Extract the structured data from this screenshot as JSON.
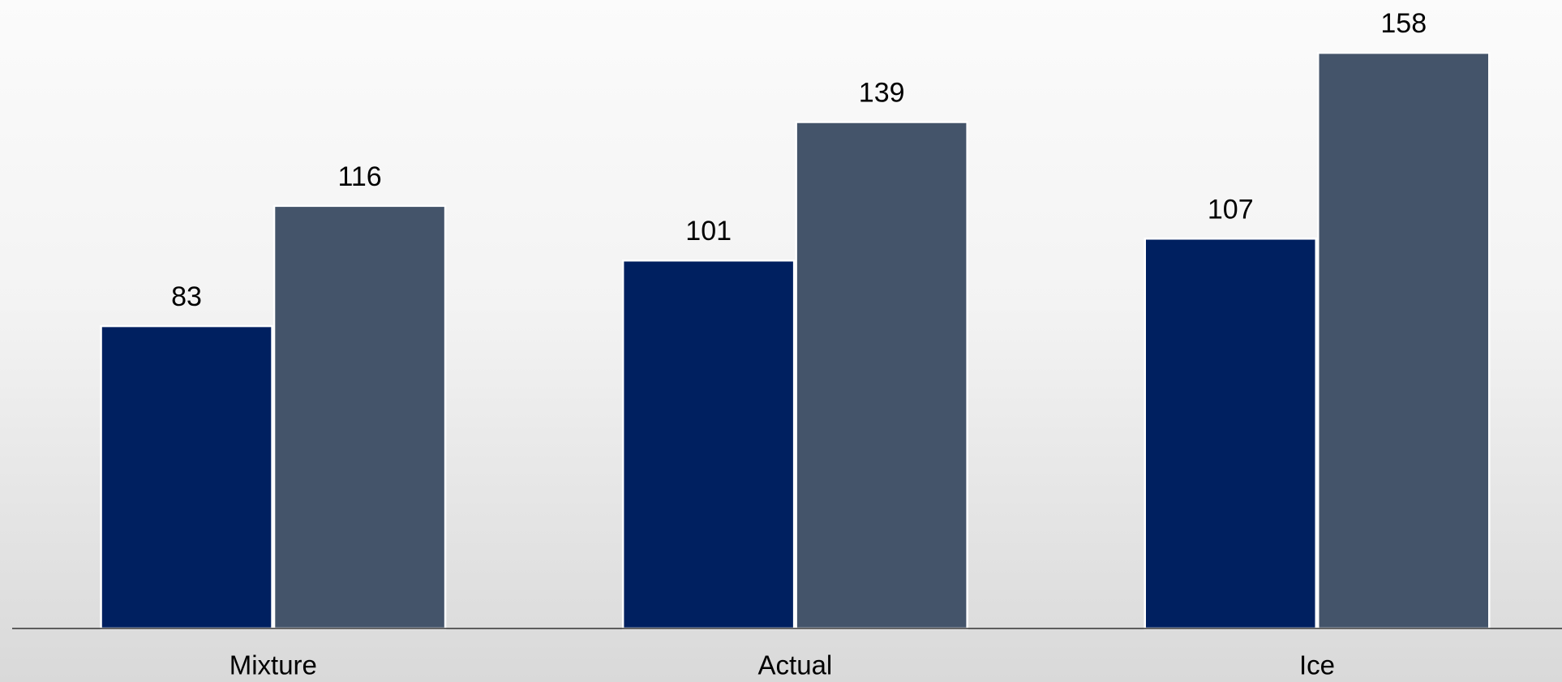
{
  "chart_data": {
    "type": "bar",
    "categories": [
      "Mixture",
      "Actual",
      "Ice"
    ],
    "series": [
      {
        "color": "#002060",
        "values": [
          83,
          101,
          107
        ]
      },
      {
        "color": "#44546a",
        "values": [
          116,
          139,
          158
        ]
      }
    ],
    "ylim": [
      0,
      172.5
    ],
    "grid": false
  }
}
